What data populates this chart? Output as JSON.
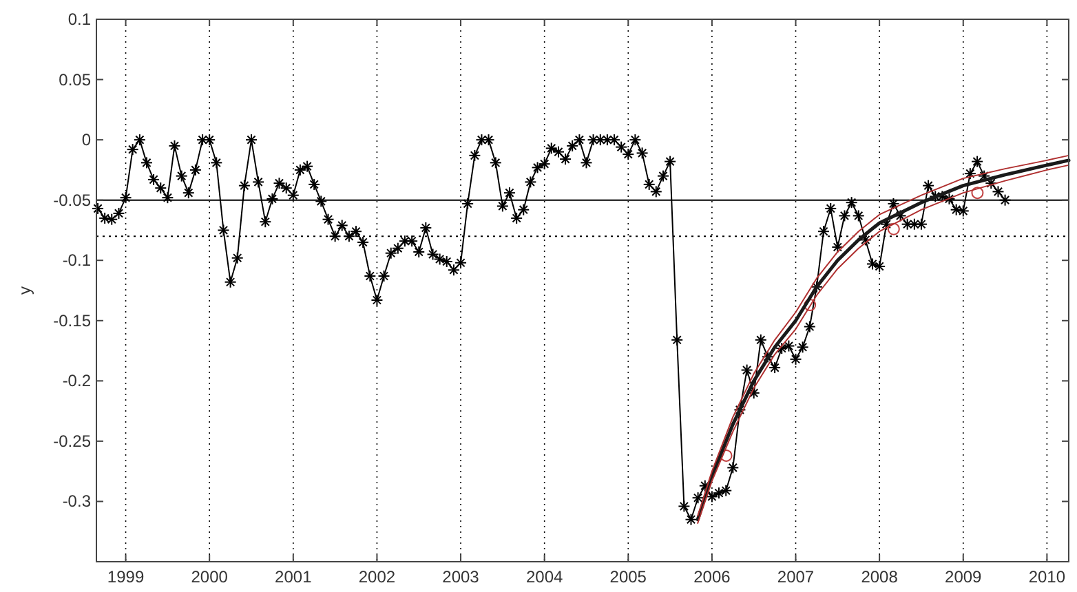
{
  "chart_data": {
    "type": "line",
    "ylabel": "y",
    "xlim": [
      1998.65,
      2010.26
    ],
    "ylim": [
      -0.35,
      0.1
    ],
    "xticks": [
      1999,
      2000,
      2001,
      2002,
      2003,
      2004,
      2005,
      2006,
      2007,
      2008,
      2009,
      2010
    ],
    "yticks": [
      0.1,
      0.05,
      0,
      -0.05,
      -0.1,
      -0.15,
      -0.2,
      -0.25,
      -0.3
    ],
    "grid": "x",
    "ref_lines": [
      {
        "axis": "y",
        "value": -0.05,
        "color": "#000000",
        "line_style": "solid"
      },
      {
        "axis": "y",
        "value": -0.08,
        "color": "#000000",
        "line_style": "dotted"
      }
    ],
    "series": [
      {
        "color": "#000000",
        "marker": "cross",
        "line_style": "solid",
        "x": [
          1998.667,
          1998.75,
          1998.833,
          1998.917,
          1999,
          1999.083,
          1999.167,
          1999.25,
          1999.333,
          1999.417,
          1999.5,
          1999.583,
          1999.667,
          1999.75,
          1999.833,
          1999.917,
          2000,
          2000.083,
          2000.167,
          2000.25,
          2000.333,
          2000.417,
          2000.5,
          2000.583,
          2000.667,
          2000.75,
          2000.833,
          2000.917,
          2001,
          2001.083,
          2001.167,
          2001.25,
          2001.333,
          2001.417,
          2001.5,
          2001.583,
          2001.667,
          2001.75,
          2001.833,
          2001.917,
          2002,
          2002.083,
          2002.167,
          2002.25,
          2002.333,
          2002.417,
          2002.5,
          2002.583,
          2002.667,
          2002.75,
          2002.833,
          2002.917,
          2003,
          2003.083,
          2003.167,
          2003.25,
          2003.333,
          2003.417,
          2003.5,
          2003.583,
          2003.667,
          2003.75,
          2003.833,
          2003.917,
          2004,
          2004.083,
          2004.167,
          2004.25,
          2004.333,
          2004.417,
          2004.5,
          2004.583,
          2004.667,
          2004.75,
          2004.833,
          2004.917,
          2005,
          2005.083,
          2005.167,
          2005.25,
          2005.333,
          2005.417,
          2005.5,
          2005.583,
          2005.667,
          2005.75,
          2005.833,
          2005.917,
          2006,
          2006.083,
          2006.167,
          2006.25,
          2006.333,
          2006.417,
          2006.5,
          2006.583,
          2006.667,
          2006.75,
          2006.833,
          2006.917,
          2007,
          2007.083,
          2007.167,
          2007.25,
          2007.333,
          2007.417,
          2007.5,
          2007.583,
          2007.667,
          2007.75,
          2007.833,
          2007.917,
          2008,
          2008.083,
          2008.167,
          2008.25,
          2008.333,
          2008.417,
          2008.5,
          2008.583,
          2008.667,
          2008.75,
          2008.833,
          2008.917,
          2009,
          2009.083,
          2009.167,
          2009.25,
          2009.333,
          2009.417,
          2009.5
        ],
        "values": [
          -0.057,
          -0.065,
          -0.066,
          -0.061,
          -0.048,
          -0.008,
          0,
          -0.019,
          -0.033,
          -0.04,
          -0.048,
          -0.005,
          -0.03,
          -0.044,
          -0.025,
          0,
          0,
          -0.019,
          -0.075,
          -0.118,
          -0.098,
          -0.038,
          0,
          -0.035,
          -0.068,
          -0.049,
          -0.036,
          -0.04,
          -0.046,
          -0.025,
          -0.022,
          -0.037,
          -0.051,
          -0.066,
          -0.08,
          -0.071,
          -0.08,
          -0.076,
          -0.085,
          -0.113,
          -0.133,
          -0.113,
          -0.094,
          -0.09,
          -0.084,
          -0.084,
          -0.093,
          -0.073,
          -0.095,
          -0.099,
          -0.101,
          -0.108,
          -0.102,
          -0.053,
          -0.013,
          0,
          0,
          -0.019,
          -0.055,
          -0.044,
          -0.065,
          -0.058,
          -0.035,
          -0.023,
          -0.02,
          -0.007,
          -0.01,
          -0.016,
          -0.005,
          0,
          -0.019,
          0,
          0,
          0,
          0,
          -0.006,
          -0.012,
          0,
          -0.011,
          -0.037,
          -0.043,
          -0.03,
          -0.018,
          -0.166,
          -0.304,
          -0.315,
          -0.297,
          -0.287,
          -0.296,
          -0.293,
          -0.291,
          -0.272,
          -0.224,
          -0.191,
          -0.21,
          -0.166,
          -0.18,
          -0.189,
          -0.173,
          -0.171,
          -0.182,
          -0.172,
          -0.155,
          -0.122,
          -0.076,
          -0.057,
          -0.089,
          -0.063,
          -0.052,
          -0.063,
          -0.083,
          -0.103,
          -0.105,
          -0.07,
          -0.053,
          -0.063,
          -0.07,
          -0.07,
          -0.07,
          -0.038,
          -0.047,
          -0.047,
          -0.049,
          -0.058,
          -0.059,
          -0.028,
          -0.018,
          -0.03,
          -0.036,
          -0.043,
          -0.05
        ]
      },
      {
        "type": "scatter",
        "color": "#c04040",
        "marker": "circle",
        "x": [
          2006.17,
          2007.17,
          2008.17,
          2009.17
        ],
        "values": [
          -0.262,
          -0.137,
          -0.074,
          -0.044
        ]
      },
      {
        "color": "#1a1a1a",
        "marker": "none",
        "line_style": "solid",
        "x": [
          2005.83,
          2006,
          2006.25,
          2006.5,
          2006.75,
          2007,
          2007.25,
          2007.5,
          2007.75,
          2008,
          2008.5,
          2009,
          2009.5,
          2010,
          2010.26
        ],
        "values": [
          -0.315,
          -0.279,
          -0.236,
          -0.2,
          -0.172,
          -0.15,
          -0.122,
          -0.1,
          -0.083,
          -0.069,
          -0.052,
          -0.038,
          -0.029,
          -0.021,
          -0.017
        ]
      },
      {
        "color": "#b03030",
        "marker": "none",
        "line_style": "solid",
        "x": [
          2005.83,
          2006,
          2006.25,
          2006.5,
          2006.75,
          2007,
          2007.25,
          2007.5,
          2007.75,
          2008,
          2008.5,
          2009,
          2009.5,
          2010,
          2010.26
        ],
        "values": [
          -0.312,
          -0.275,
          -0.23,
          -0.194,
          -0.166,
          -0.143,
          -0.115,
          -0.093,
          -0.076,
          -0.062,
          -0.046,
          -0.032,
          -0.024,
          -0.017,
          -0.013
        ]
      },
      {
        "color": "#b03030",
        "marker": "none",
        "line_style": "solid",
        "x": [
          2005.83,
          2006,
          2006.25,
          2006.5,
          2006.75,
          2007,
          2007.25,
          2007.5,
          2007.75,
          2008,
          2008.5,
          2009,
          2009.5,
          2010,
          2010.26
        ],
        "values": [
          -0.318,
          -0.283,
          -0.242,
          -0.206,
          -0.178,
          -0.157,
          -0.129,
          -0.107,
          -0.09,
          -0.076,
          -0.058,
          -0.044,
          -0.034,
          -0.025,
          -0.021
        ]
      }
    ]
  }
}
